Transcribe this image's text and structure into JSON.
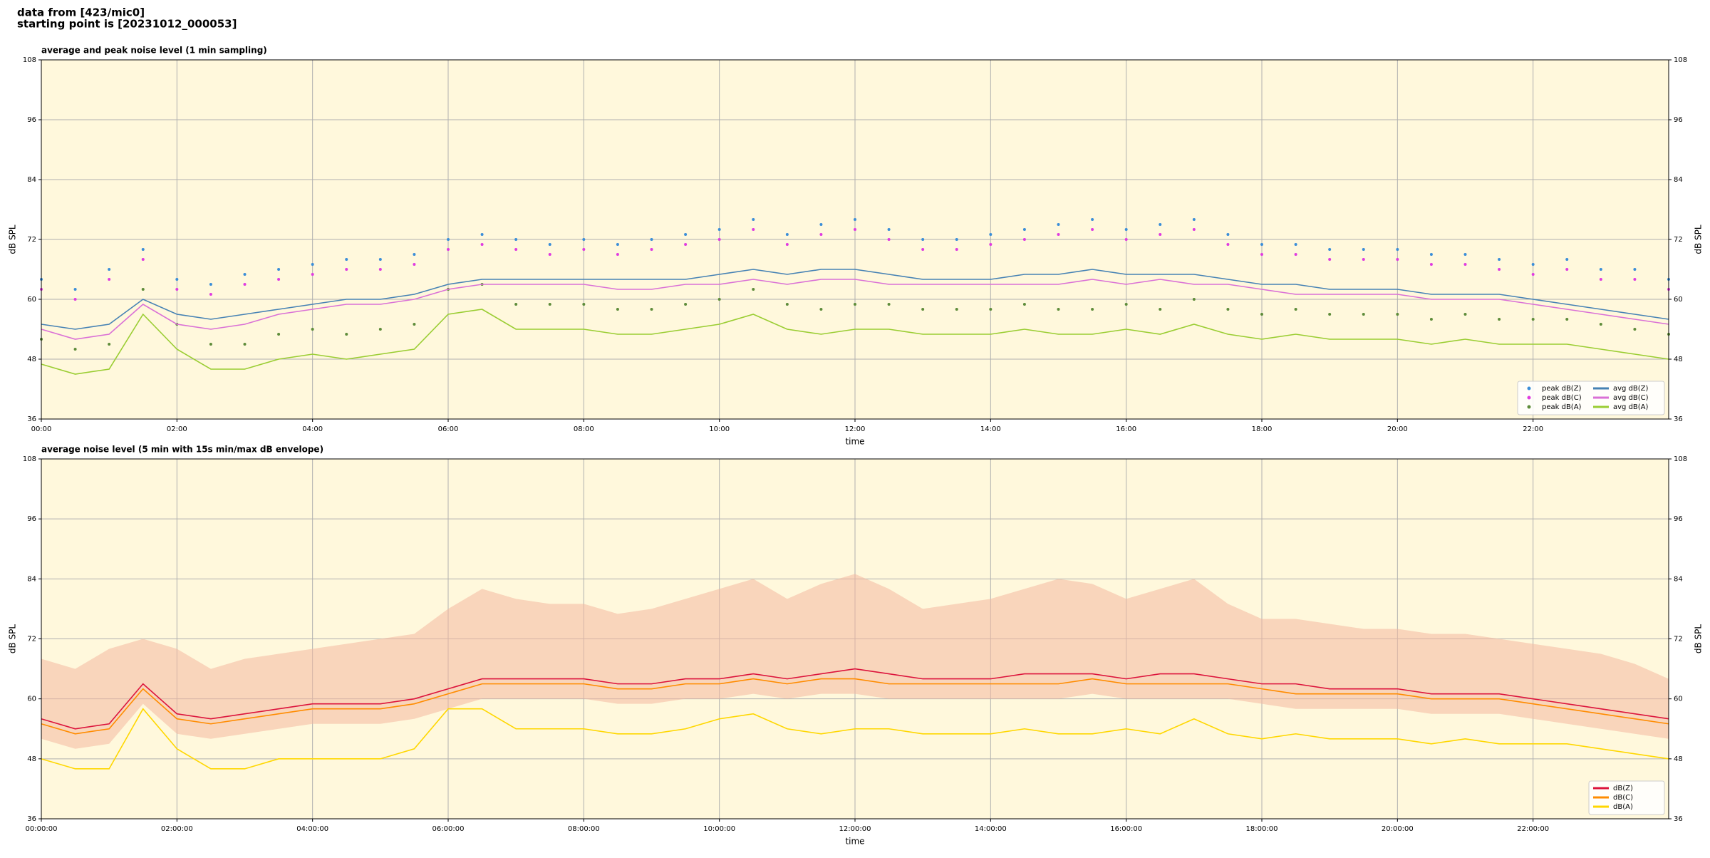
{
  "title": [
    "data from [423/mic0]",
    "starting point is [20231012_000053]"
  ],
  "chart_data": [
    {
      "type": "line",
      "title": "average and peak noise level (1 min sampling)",
      "xlabel": "time",
      "ylabel": "dB SPL",
      "x": [
        0,
        0.5,
        1,
        1.5,
        2,
        2.5,
        3,
        3.5,
        4,
        4.5,
        5,
        5.5,
        6,
        6.5,
        7,
        7.5,
        8,
        8.5,
        9,
        9.5,
        10,
        10.5,
        11,
        11.5,
        12,
        12.5,
        13,
        13.5,
        14,
        14.5,
        15,
        15.5,
        16,
        16.5,
        17,
        17.5,
        18,
        18.5,
        19,
        19.5,
        20,
        20.5,
        21,
        21.5,
        22,
        22.5,
        23,
        23.5,
        24
      ],
      "xlim": [
        0,
        24
      ],
      "xticks": [
        {
          "value": 0,
          "label": "00:00"
        },
        {
          "value": 2,
          "label": "02:00"
        },
        {
          "value": 4,
          "label": "04:00"
        },
        {
          "value": 6,
          "label": "06:00"
        },
        {
          "value": 8,
          "label": "08:00"
        },
        {
          "value": 10,
          "label": "10:00"
        },
        {
          "value": 12,
          "label": "12:00"
        },
        {
          "value": 14,
          "label": "14:00"
        },
        {
          "value": 16,
          "label": "16:00"
        },
        {
          "value": 18,
          "label": "18:00"
        },
        {
          "value": 20,
          "label": "20:00"
        },
        {
          "value": 22,
          "label": "22:00"
        }
      ],
      "ylim": [
        36,
        108
      ],
      "yticks": [
        36,
        48,
        60,
        72,
        84,
        96,
        108
      ],
      "grid": true,
      "legend": "lower right",
      "legend_columns": 2,
      "series": [
        {
          "name": "peak dB(Z)",
          "style": "dots",
          "color": "#3b8ed8",
          "values": [
            64,
            62,
            66,
            70,
            64,
            63,
            65,
            66,
            67,
            68,
            68,
            69,
            72,
            73,
            72,
            71,
            72,
            71,
            72,
            73,
            74,
            76,
            73,
            75,
            76,
            74,
            72,
            72,
            73,
            74,
            75,
            76,
            74,
            75,
            76,
            73,
            71,
            71,
            70,
            70,
            70,
            69,
            69,
            68,
            67,
            68,
            66,
            66,
            64
          ]
        },
        {
          "name": "peak dB(C)",
          "style": "dots",
          "color": "#e03ce0",
          "values": [
            62,
            60,
            64,
            68,
            62,
            61,
            63,
            64,
            65,
            66,
            66,
            67,
            70,
            71,
            70,
            69,
            70,
            69,
            70,
            71,
            72,
            74,
            71,
            73,
            74,
            72,
            70,
            70,
            71,
            72,
            73,
            74,
            72,
            73,
            74,
            71,
            69,
            69,
            68,
            68,
            68,
            67,
            67,
            66,
            65,
            66,
            64,
            64,
            62
          ]
        },
        {
          "name": "peak dB(A)",
          "style": "dots",
          "color": "#5e8c3a",
          "values": [
            52,
            50,
            51,
            62,
            55,
            51,
            51,
            53,
            54,
            53,
            54,
            55,
            62,
            63,
            59,
            59,
            59,
            58,
            58,
            59,
            60,
            62,
            59,
            58,
            59,
            59,
            58,
            58,
            58,
            59,
            58,
            58,
            59,
            58,
            60,
            58,
            57,
            58,
            57,
            57,
            57,
            56,
            57,
            56,
            56,
            56,
            55,
            54,
            53
          ]
        },
        {
          "name": "avg dB(Z)",
          "style": "line",
          "color": "#4682b4",
          "values": [
            55,
            54,
            55,
            60,
            57,
            56,
            57,
            58,
            59,
            60,
            60,
            61,
            63,
            64,
            64,
            64,
            64,
            64,
            64,
            64,
            65,
            66,
            65,
            66,
            66,
            65,
            64,
            64,
            64,
            65,
            65,
            66,
            65,
            65,
            65,
            64,
            63,
            63,
            62,
            62,
            62,
            61,
            61,
            61,
            60,
            59,
            58,
            57,
            56
          ]
        },
        {
          "name": "avg dB(C)",
          "style": "line",
          "color": "#da70d6",
          "values": [
            54,
            52,
            53,
            59,
            55,
            54,
            55,
            57,
            58,
            59,
            59,
            60,
            62,
            63,
            63,
            63,
            63,
            62,
            62,
            63,
            63,
            64,
            63,
            64,
            64,
            63,
            63,
            63,
            63,
            63,
            63,
            64,
            63,
            64,
            63,
            63,
            62,
            61,
            61,
            61,
            61,
            60,
            60,
            60,
            59,
            58,
            57,
            56,
            55
          ]
        },
        {
          "name": "avg dB(A)",
          "style": "line",
          "color": "#9acd32",
          "values": [
            47,
            45,
            46,
            57,
            50,
            46,
            46,
            48,
            49,
            48,
            49,
            50,
            57,
            58,
            54,
            54,
            54,
            53,
            53,
            54,
            55,
            57,
            54,
            53,
            54,
            54,
            53,
            53,
            53,
            54,
            53,
            53,
            54,
            53,
            55,
            53,
            52,
            53,
            52,
            52,
            52,
            51,
            52,
            51,
            51,
            51,
            50,
            49,
            48
          ]
        }
      ]
    },
    {
      "type": "line",
      "title": "average noise level (5 min with 15s min/max dB envelope)",
      "xlabel": "time",
      "ylabel": "dB SPL",
      "x": [
        0,
        0.5,
        1,
        1.5,
        2,
        2.5,
        3,
        3.5,
        4,
        4.5,
        5,
        5.5,
        6,
        6.5,
        7,
        7.5,
        8,
        8.5,
        9,
        9.5,
        10,
        10.5,
        11,
        11.5,
        12,
        12.5,
        13,
        13.5,
        14,
        14.5,
        15,
        15.5,
        16,
        16.5,
        17,
        17.5,
        18,
        18.5,
        19,
        19.5,
        20,
        20.5,
        21,
        21.5,
        22,
        22.5,
        23,
        23.5,
        24
      ],
      "xlim": [
        0,
        24
      ],
      "xticks": [
        {
          "value": 0,
          "label": "00:00:00"
        },
        {
          "value": 2,
          "label": "02:00:00"
        },
        {
          "value": 4,
          "label": "04:00:00"
        },
        {
          "value": 6,
          "label": "06:00:00"
        },
        {
          "value": 8,
          "label": "08:00:00"
        },
        {
          "value": 10,
          "label": "10:00:00"
        },
        {
          "value": 12,
          "label": "12:00:00"
        },
        {
          "value": 14,
          "label": "14:00:00"
        },
        {
          "value": 16,
          "label": "16:00:00"
        },
        {
          "value": 18,
          "label": "18:00:00"
        },
        {
          "value": 20,
          "label": "20:00:00"
        },
        {
          "value": 22,
          "label": "22:00:00"
        }
      ],
      "ylim": [
        36,
        108
      ],
      "yticks": [
        36,
        48,
        60,
        72,
        84,
        96,
        108
      ],
      "grid": true,
      "legend": "lower right",
      "legend_columns": 1,
      "band": {
        "color": "#f4b8a0",
        "lower": [
          52,
          50,
          51,
          59,
          53,
          52,
          53,
          54,
          55,
          55,
          55,
          56,
          58,
          60,
          60,
          60,
          60,
          59,
          59,
          60,
          60,
          61,
          60,
          61,
          61,
          60,
          60,
          60,
          60,
          60,
          60,
          61,
          60,
          60,
          60,
          60,
          59,
          58,
          58,
          58,
          58,
          57,
          57,
          57,
          56,
          55,
          54,
          53,
          52
        ],
        "upper": [
          68,
          66,
          70,
          72,
          70,
          66,
          68,
          69,
          70,
          71,
          72,
          73,
          78,
          82,
          80,
          79,
          79,
          77,
          78,
          80,
          82,
          84,
          80,
          83,
          85,
          82,
          78,
          79,
          80,
          82,
          84,
          83,
          80,
          82,
          84,
          79,
          76,
          76,
          75,
          74,
          74,
          73,
          73,
          72,
          71,
          70,
          69,
          67,
          64
        ]
      },
      "series": [
        {
          "name": "dB(Z)",
          "style": "line",
          "color": "#dc143c",
          "values": [
            56,
            54,
            55,
            63,
            57,
            56,
            57,
            58,
            59,
            59,
            59,
            60,
            62,
            64,
            64,
            64,
            64,
            63,
            63,
            64,
            64,
            65,
            64,
            65,
            66,
            65,
            64,
            64,
            64,
            65,
            65,
            65,
            64,
            65,
            65,
            64,
            63,
            63,
            62,
            62,
            62,
            61,
            61,
            61,
            60,
            59,
            58,
            57,
            56
          ]
        },
        {
          "name": "dB(C)",
          "style": "line",
          "color": "#ff8c00",
          "values": [
            55,
            53,
            54,
            62,
            56,
            55,
            56,
            57,
            58,
            58,
            58,
            59,
            61,
            63,
            63,
            63,
            63,
            62,
            62,
            63,
            63,
            64,
            63,
            64,
            64,
            63,
            63,
            63,
            63,
            63,
            63,
            64,
            63,
            63,
            63,
            63,
            62,
            61,
            61,
            61,
            61,
            60,
            60,
            60,
            59,
            58,
            57,
            56,
            55
          ]
        },
        {
          "name": "dB(A)",
          "style": "line",
          "color": "#ffd700",
          "values": [
            48,
            46,
            46,
            58,
            50,
            46,
            46,
            48,
            48,
            48,
            48,
            50,
            58,
            58,
            54,
            54,
            54,
            53,
            53,
            54,
            56,
            57,
            54,
            53,
            54,
            54,
            53,
            53,
            53,
            54,
            53,
            53,
            54,
            53,
            56,
            53,
            52,
            53,
            52,
            52,
            52,
            51,
            52,
            51,
            51,
            51,
            50,
            49,
            48
          ]
        }
      ]
    }
  ]
}
